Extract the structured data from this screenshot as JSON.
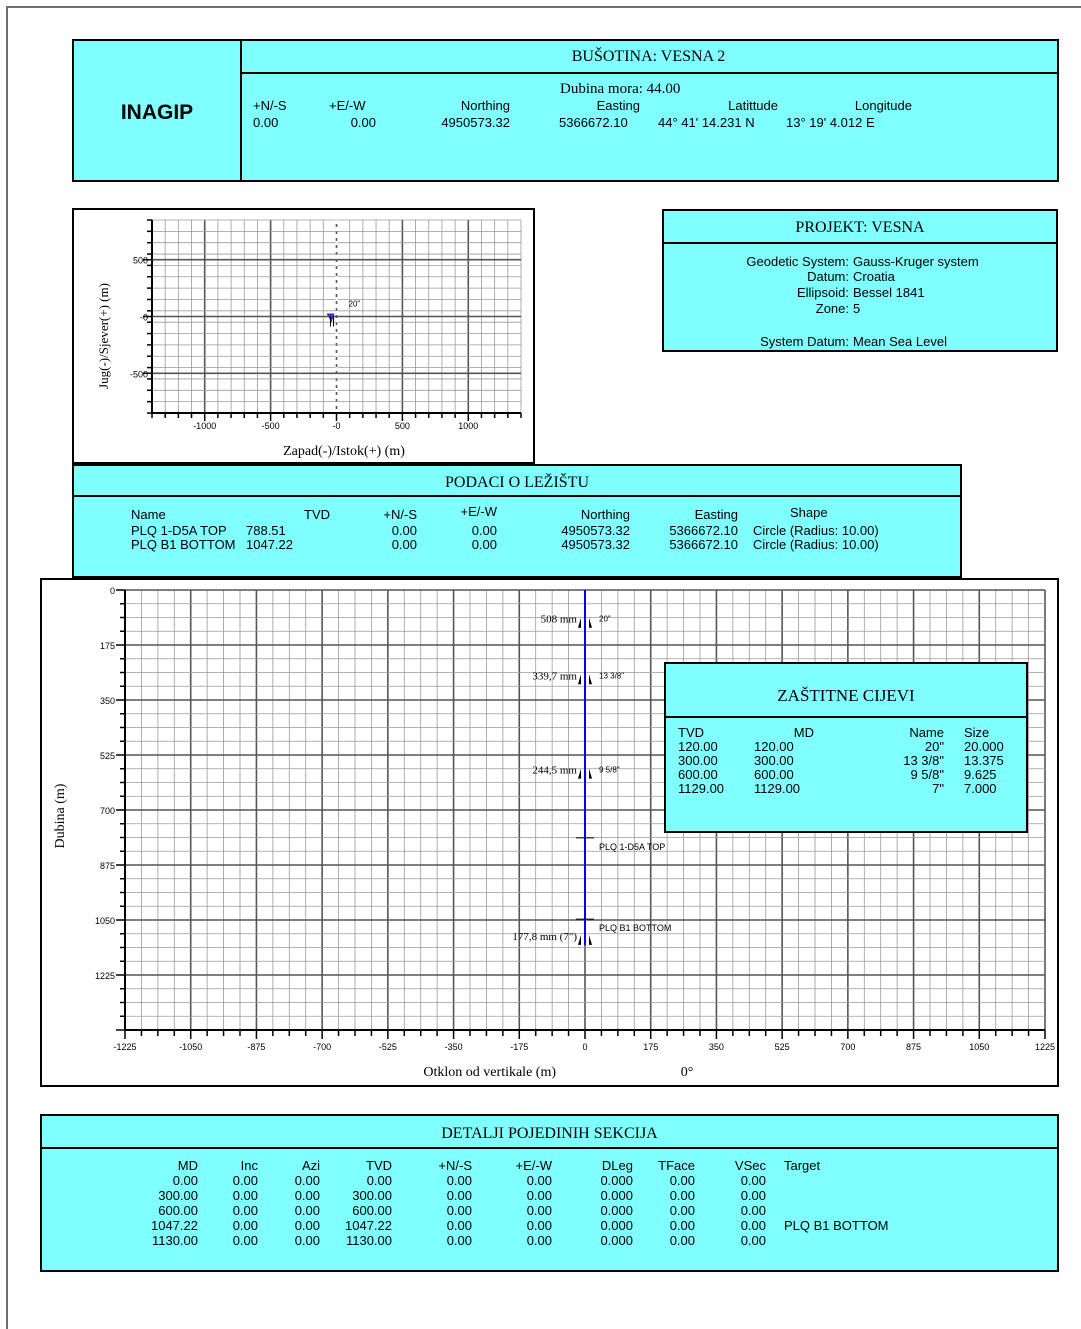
{
  "header": {
    "company": "INAGIP",
    "well_title": "BUŠOTINA: VESNA 2",
    "sea_depth": "Dubina mora: 44.00",
    "columns": [
      "+N/-S",
      "+E/-W",
      "Northing",
      "Easting",
      "Latittude",
      "Longitude"
    ],
    "values": [
      "0.00",
      "0.00",
      "4950573.32",
      "5366672.10",
      "44° 41' 14.231 N",
      "13° 19' 4.012 E"
    ]
  },
  "project": {
    "title": "PROJEKT: VESNA",
    "rows": [
      {
        "label": "Geodetic System:",
        "value": "Gauss-Kruger system"
      },
      {
        "label": "Datum:",
        "value": "Croatia"
      },
      {
        "label": "Ellipsoid:",
        "value": "Bessel 1841"
      },
      {
        "label": "Zone:",
        "value": "5"
      },
      {
        "label": "System Datum:",
        "value": "Mean Sea Level"
      }
    ]
  },
  "plan_view": {
    "ylabel": "Jug(-)/Sjever(+) (m)",
    "xlabel": "Zapad(-)/Istok(+) (m)",
    "y_ticks": [
      "500",
      "-0",
      "-500"
    ],
    "x_ticks": [
      "-1000",
      "-500",
      "-0",
      "500",
      "1000"
    ],
    "marker_label": "20\""
  },
  "targets": {
    "title": "PODACI O LEŽIŠTU",
    "columns": [
      "Name",
      "TVD",
      "+N/-S",
      "+E/-W",
      "Northing",
      "Easting",
      "Shape"
    ],
    "rows": [
      [
        "PLQ 1-D5A TOP",
        "788.51",
        "0.00",
        "0.00",
        "4950573.32",
        "5366672.10",
        "Circle (Radius: 10.00)"
      ],
      [
        "PLQ B1 BOTTOM",
        "1047.22",
        "0.00",
        "0.00",
        "4950573.32",
        "5366672.10",
        "Circle (Radius: 10.00)"
      ]
    ]
  },
  "section_view": {
    "ylabel": "Dubina (m)",
    "xlabel": "Otklon od vertikale (m)",
    "azimuth": "0°",
    "y_ticks": [
      "0",
      "175",
      "350",
      "525",
      "700",
      "875",
      "1050",
      "1225"
    ],
    "x_ticks": [
      "-1225",
      "-1050",
      "-875",
      "-700",
      "-525",
      "-350",
      "-175",
      "0",
      "175",
      "350",
      "525",
      "700",
      "875",
      "1050",
      "1225"
    ],
    "casing_marks": [
      {
        "depth_label": "508 mm",
        "size_label": "20\"",
        "tvd": 120
      },
      {
        "depth_label": "339,7 mm",
        "size_label": "13 3/8\"",
        "tvd": 300
      },
      {
        "depth_label": "244,5 mm",
        "size_label": "9 5/8\"",
        "tvd": 600
      },
      {
        "depth_label": "177,8 mm (7\")",
        "size_label": "",
        "tvd": 1129
      }
    ],
    "target_marks": [
      {
        "label": "PLQ 1-D5A TOP",
        "tvd": 788.51
      },
      {
        "label": "PLQ B1 BOTTOM",
        "tvd": 1047.22
      }
    ]
  },
  "casing": {
    "title": "ZAŠTITNE CIJEVI",
    "columns": [
      "TVD",
      "MD",
      "Name",
      "Size"
    ],
    "rows": [
      [
        "120.00",
        "120.00",
        "20\"",
        "20.000"
      ],
      [
        "300.00",
        "300.00",
        "13 3/8\"",
        "13.375"
      ],
      [
        "600.00",
        "600.00",
        "9 5/8\"",
        "9.625"
      ],
      [
        "1129.00",
        "1129.00",
        "7\"",
        "7.000"
      ]
    ]
  },
  "sections": {
    "title": "DETALJI POJEDINIH SEKCIJA",
    "columns": [
      "MD",
      "Inc",
      "Azi",
      "TVD",
      "+N/-S",
      "+E/-W",
      "DLeg",
      "TFace",
      "VSec",
      "Target"
    ],
    "rows": [
      [
        "0.00",
        "0.00",
        "0.00",
        "0.00",
        "0.00",
        "0.00",
        "0.000",
        "0.00",
        "0.00",
        ""
      ],
      [
        "300.00",
        "0.00",
        "0.00",
        "300.00",
        "0.00",
        "0.00",
        "0.000",
        "0.00",
        "0.00",
        ""
      ],
      [
        "600.00",
        "0.00",
        "0.00",
        "600.00",
        "0.00",
        "0.00",
        "0.000",
        "0.00",
        "0.00",
        ""
      ],
      [
        "1047.22",
        "0.00",
        "0.00",
        "1047.22",
        "0.00",
        "0.00",
        "0.000",
        "0.00",
        "0.00",
        "PLQ B1 BOTTOM"
      ],
      [
        "1130.00",
        "0.00",
        "0.00",
        "1130.00",
        "0.00",
        "0.00",
        "0.000",
        "0.00",
        "0.00",
        ""
      ]
    ]
  },
  "colors": {
    "panel": "#80ffff",
    "well_path": "#0000ff"
  }
}
